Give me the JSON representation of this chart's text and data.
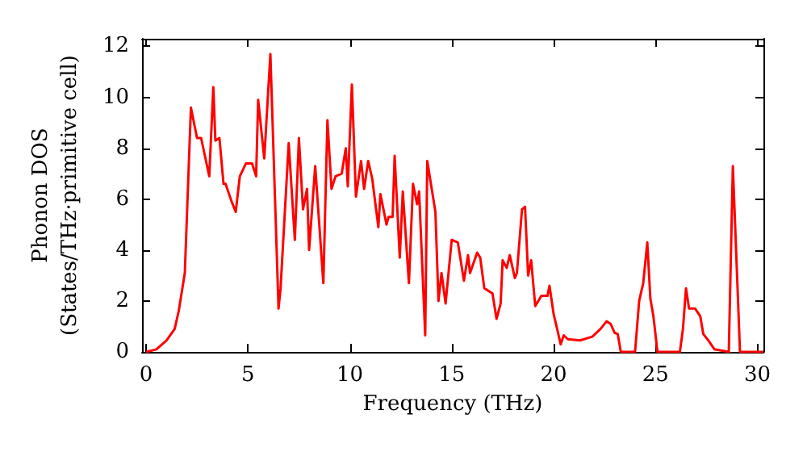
{
  "chart_data": {
    "type": "line",
    "xlabel": "Frequency (THz)",
    "ylabel": "Phonon DOS\n(States/THz·primitive cell)",
    "xlim": [
      -0.2,
      30.3
    ],
    "ylim": [
      0,
      12.3
    ],
    "xticks": [
      0,
      5,
      10,
      15,
      20,
      25,
      30
    ],
    "yticks": [
      0,
      2,
      4,
      6,
      8,
      10,
      12
    ],
    "grid": false,
    "marker": "none",
    "line_style": "solid",
    "series": [
      {
        "color": "#ff0000",
        "x": [
          0,
          0.5,
          1,
          1.4,
          1.6,
          1.9,
          2.2,
          2.5,
          2.7,
          3.1,
          3.3,
          3.4,
          3.6,
          3.8,
          3.9,
          4.2,
          4.4,
          4.6,
          4.9,
          5.2,
          5.4,
          5.5,
          5.8,
          6.1,
          6.5,
          6.6,
          7.0,
          7.3,
          7.5,
          7.7,
          7.9,
          8.0,
          8.3,
          8.7,
          8.9,
          9.1,
          9.3,
          9.6,
          9.8,
          9.9,
          10.1,
          10.3,
          10.55,
          10.7,
          10.9,
          11.1,
          11.4,
          11.5,
          11.8,
          11.9,
          12.1,
          12.2,
          12.45,
          12.6,
          12.9,
          13.1,
          13.3,
          13.4,
          13.7,
          13.8,
          14.2,
          14.35,
          14.5,
          14.7,
          15.0,
          15.3,
          15.6,
          15.8,
          15.9,
          16.25,
          16.4,
          16.6,
          17.0,
          17.2,
          17.4,
          17.5,
          17.7,
          17.85,
          18.1,
          18.2,
          18.45,
          18.6,
          18.75,
          18.9,
          19.1,
          19.4,
          19.7,
          19.8,
          20.0,
          20.35,
          20.5,
          20.7,
          21.3,
          21.9,
          22.3,
          22.6,
          22.8,
          23.0,
          23.15,
          23.3,
          24.0,
          24.2,
          24.4,
          24.6,
          24.75,
          24.9,
          25.1,
          26.2,
          26.35,
          26.5,
          26.65,
          26.95,
          27.2,
          27.35,
          27.55,
          27.9,
          28.6,
          28.8,
          29.15,
          30.3
        ],
        "values": [
          0,
          0.1,
          0.45,
          0.9,
          1.6,
          3.1,
          9.6,
          8.4,
          8.4,
          6.9,
          10.4,
          8.3,
          8.4,
          6.6,
          6.6,
          5.9,
          5.5,
          6.9,
          7.4,
          7.4,
          6.9,
          9.9,
          7.6,
          11.7,
          1.7,
          2.5,
          8.2,
          4.4,
          8.4,
          5.6,
          6.4,
          4.0,
          7.3,
          2.7,
          9.1,
          6.4,
          6.9,
          7.0,
          8.0,
          6.5,
          10.5,
          6.1,
          7.5,
          6.4,
          7.5,
          6.8,
          4.9,
          6.2,
          5.0,
          5.3,
          5.3,
          7.7,
          3.7,
          6.3,
          2.7,
          6.6,
          5.8,
          6.3,
          0.65,
          7.5,
          5.5,
          2.0,
          3.1,
          1.9,
          4.4,
          4.3,
          2.8,
          3.8,
          3.1,
          3.9,
          3.7,
          2.5,
          2.3,
          1.3,
          1.9,
          3.6,
          3.3,
          3.8,
          2.9,
          3.1,
          5.6,
          5.7,
          3.0,
          3.6,
          1.8,
          2.2,
          2.2,
          2.6,
          1.5,
          0.3,
          0.65,
          0.5,
          0.45,
          0.6,
          0.9,
          1.2,
          1.1,
          0.75,
          0.7,
          0,
          0,
          2.0,
          2.7,
          4.3,
          2.1,
          1.4,
          0,
          0,
          0.9,
          2.5,
          1.7,
          1.7,
          1.4,
          0.7,
          0.5,
          0.1,
          0,
          7.3,
          0,
          0
        ]
      }
    ]
  }
}
